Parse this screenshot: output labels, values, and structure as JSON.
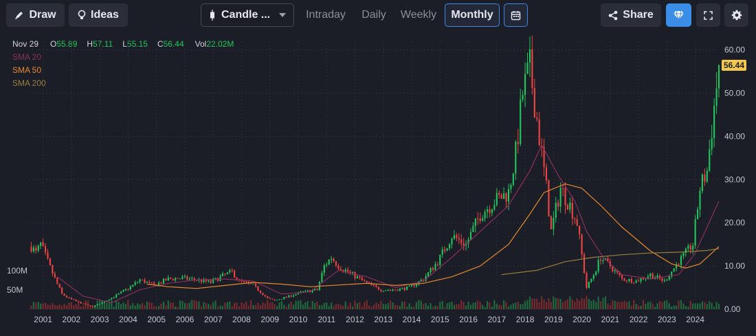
{
  "toolbar": {
    "draw_label": "Draw",
    "ideas_label": "Ideas",
    "chart_type_label": "Candle ...",
    "periods": [
      "Intraday",
      "Daily",
      "Weekly",
      "Monthly"
    ],
    "active_period": "Monthly",
    "share_label": "Share"
  },
  "legend": {
    "date": "Nov 29",
    "open_key": "O",
    "open": "55.89",
    "high_key": "H",
    "high": "57.11",
    "low_key": "L",
    "low": "55.15",
    "close_key": "C",
    "close": "56.44",
    "vol_key": "Vol",
    "vol": "22.02M",
    "sma20": "SMA 20",
    "sma50": "SMA 50",
    "sma200": "SMA 200"
  },
  "colors": {
    "up": "#22c55e",
    "down": "#ef4444",
    "sma20": "#8b2f5e",
    "sma50": "#e8892f",
    "sma200": "#9a7f3f",
    "accent": "#3f88e6",
    "last_price_bg": "#f2c94c"
  },
  "chart_data": {
    "type": "candlestick",
    "last_price_label": "56.44",
    "y_ticks": [
      "60.00",
      "50.00",
      "40.00",
      "30.00",
      "20.00",
      "10.00",
      "0.00"
    ],
    "y_tick_values": [
      60,
      50,
      40,
      30,
      20,
      10,
      0
    ],
    "ylim": [
      0,
      62
    ],
    "volume_ticks": [
      "100M",
      "50M"
    ],
    "volume_tick_values": [
      100,
      50
    ],
    "x_ticks": [
      "2001",
      "2002",
      "2003",
      "2004",
      "2005",
      "2006",
      "2007",
      "2008",
      "2009",
      "2010",
      "2011",
      "2012",
      "2013",
      "2014",
      "2015",
      "2016",
      "2017",
      "2018",
      "2019",
      "2020",
      "2021",
      "2022",
      "2023",
      "2024"
    ],
    "xlim": [
      "2000-07",
      "2024-11"
    ],
    "close_path": [
      [
        "2000-08",
        14.5
      ],
      [
        "2000-10",
        13
      ],
      [
        "2000-12",
        15
      ],
      [
        "2001-03",
        11
      ],
      [
        "2001-06",
        7
      ],
      [
        "2001-09",
        3.5
      ],
      [
        "2001-12",
        2.5
      ],
      [
        "2002-06",
        1.2
      ],
      [
        "2002-10",
        0.6
      ],
      [
        "2003-03",
        1.8
      ],
      [
        "2003-09",
        3.5
      ],
      [
        "2004-03",
        5.5
      ],
      [
        "2004-06",
        6.8
      ],
      [
        "2004-12",
        5.5
      ],
      [
        "2005-06",
        7
      ],
      [
        "2005-12",
        7.2
      ],
      [
        "2006-06",
        6.8
      ],
      [
        "2006-12",
        6.2
      ],
      [
        "2007-06",
        8
      ],
      [
        "2007-09",
        8.6
      ],
      [
        "2007-12",
        6.5
      ],
      [
        "2008-06",
        5.5
      ],
      [
        "2008-12",
        2.5
      ],
      [
        "2009-03",
        2
      ],
      [
        "2009-09",
        3
      ],
      [
        "2010-03",
        4
      ],
      [
        "2010-09",
        4.5
      ],
      [
        "2010-12",
        10
      ],
      [
        "2011-03",
        12
      ],
      [
        "2011-06",
        10
      ],
      [
        "2011-12",
        8
      ],
      [
        "2012-06",
        6
      ],
      [
        "2012-12",
        4.5
      ],
      [
        "2013-06",
        4.5
      ],
      [
        "2013-12",
        5
      ],
      [
        "2014-06",
        7
      ],
      [
        "2014-12",
        11
      ],
      [
        "2015-06",
        17
      ],
      [
        "2015-12",
        15
      ],
      [
        "2016-06",
        22
      ],
      [
        "2016-12",
        25
      ],
      [
        "2017-06",
        27
      ],
      [
        "2017-09",
        36
      ],
      [
        "2017-12",
        50
      ],
      [
        "2018-03",
        56
      ],
      [
        "2018-07",
        40
      ],
      [
        "2018-10",
        28
      ],
      [
        "2018-12",
        18
      ],
      [
        "2019-04",
        28
      ],
      [
        "2019-08",
        24
      ],
      [
        "2019-11",
        20
      ],
      [
        "2020-03",
        5
      ],
      [
        "2020-06",
        8
      ],
      [
        "2020-09",
        12
      ],
      [
        "2021-01",
        10
      ],
      [
        "2021-06",
        7
      ],
      [
        "2021-12",
        6.5
      ],
      [
        "2022-06",
        8
      ],
      [
        "2022-12",
        6.5
      ],
      [
        "2023-06",
        11
      ],
      [
        "2023-12",
        15
      ],
      [
        "2024-03",
        28
      ],
      [
        "2024-06",
        32
      ],
      [
        "2024-08",
        42
      ],
      [
        "2024-11",
        56.44
      ]
    ],
    "sma20_path": [
      [
        "2001-07",
        7.5
      ],
      [
        "2002-06",
        3
      ],
      [
        "2003-06",
        1.5
      ],
      [
        "2004-06",
        4.5
      ],
      [
        "2005-06",
        6
      ],
      [
        "2006-06",
        6.8
      ],
      [
        "2007-06",
        7
      ],
      [
        "2008-06",
        6.5
      ],
      [
        "2009-06",
        3.5
      ],
      [
        "2010-06",
        4
      ],
      [
        "2011-06",
        9
      ],
      [
        "2012-06",
        7.5
      ],
      [
        "2013-06",
        5
      ],
      [
        "2014-06",
        6.5
      ],
      [
        "2015-06",
        12
      ],
      [
        "2016-06",
        18
      ],
      [
        "2017-06",
        24
      ],
      [
        "2018-03",
        32
      ],
      [
        "2018-08",
        38
      ],
      [
        "2019-03",
        31
      ],
      [
        "2019-10",
        25
      ],
      [
        "2020-03",
        18
      ],
      [
        "2020-10",
        12
      ],
      [
        "2021-06",
        8
      ],
      [
        "2022-06",
        7
      ],
      [
        "2023-06",
        8
      ],
      [
        "2024-01",
        13
      ],
      [
        "2024-11",
        25
      ]
    ],
    "sma50_path": [
      [
        "2004-09",
        5.8
      ],
      [
        "2005-06",
        5.2
      ],
      [
        "2006-06",
        4.8
      ],
      [
        "2007-06",
        5.5
      ],
      [
        "2008-06",
        6.2
      ],
      [
        "2009-06",
        5.8
      ],
      [
        "2010-06",
        5.2
      ],
      [
        "2011-06",
        5.6
      ],
      [
        "2012-06",
        6.0
      ],
      [
        "2013-06",
        5.5
      ],
      [
        "2014-06",
        6.0
      ],
      [
        "2015-06",
        7.5
      ],
      [
        "2016-06",
        10
      ],
      [
        "2017-06",
        15
      ],
      [
        "2018-03",
        22
      ],
      [
        "2018-09",
        27
      ],
      [
        "2019-06",
        29
      ],
      [
        "2020-01",
        28
      ],
      [
        "2020-09",
        24
      ],
      [
        "2021-06",
        19
      ],
      [
        "2022-06",
        13.5
      ],
      [
        "2023-03",
        10.5
      ],
      [
        "2023-09",
        9.5
      ],
      [
        "2024-03",
        10.5
      ],
      [
        "2024-11",
        14.5
      ]
    ],
    "sma200_path": [
      [
        "2017-03",
        8
      ],
      [
        "2018-06",
        9
      ],
      [
        "2019-06",
        11
      ],
      [
        "2020-06",
        12
      ],
      [
        "2021-06",
        12.6
      ],
      [
        "2022-06",
        13
      ],
      [
        "2023-06",
        13.2
      ],
      [
        "2024-06",
        13.6
      ],
      [
        "2024-11",
        14
      ]
    ]
  }
}
